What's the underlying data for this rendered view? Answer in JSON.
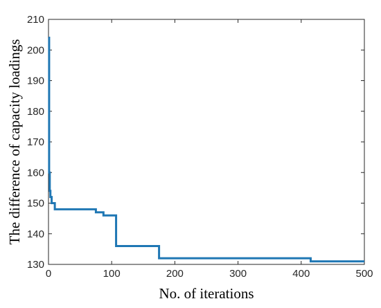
{
  "chart_data": {
    "type": "line",
    "title": "",
    "xlabel": "No. of iterations",
    "ylabel": "The difference of capacity loadings",
    "xlim": [
      0,
      500
    ],
    "ylim": [
      130,
      210
    ],
    "x_ticks": [
      "0",
      "100",
      "200",
      "300",
      "400",
      "500"
    ],
    "y_ticks": [
      "130",
      "140",
      "150",
      "160",
      "170",
      "180",
      "190",
      "200",
      "210"
    ],
    "grid": false,
    "legend": "none",
    "series": [
      {
        "color": "#1f77b4",
        "x": [
          0,
          1,
          1,
          2,
          2,
          3,
          3,
          5,
          5,
          10,
          10,
          75,
          75,
          87,
          87,
          95,
          95,
          107,
          107,
          175,
          175,
          415,
          415,
          500
        ],
        "y": [
          204,
          204,
          160,
          160,
          154,
          154,
          152,
          152,
          150,
          150,
          148,
          148,
          147,
          147,
          146,
          146,
          146,
          146,
          136,
          136,
          132,
          132,
          131,
          131
        ]
      }
    ]
  }
}
